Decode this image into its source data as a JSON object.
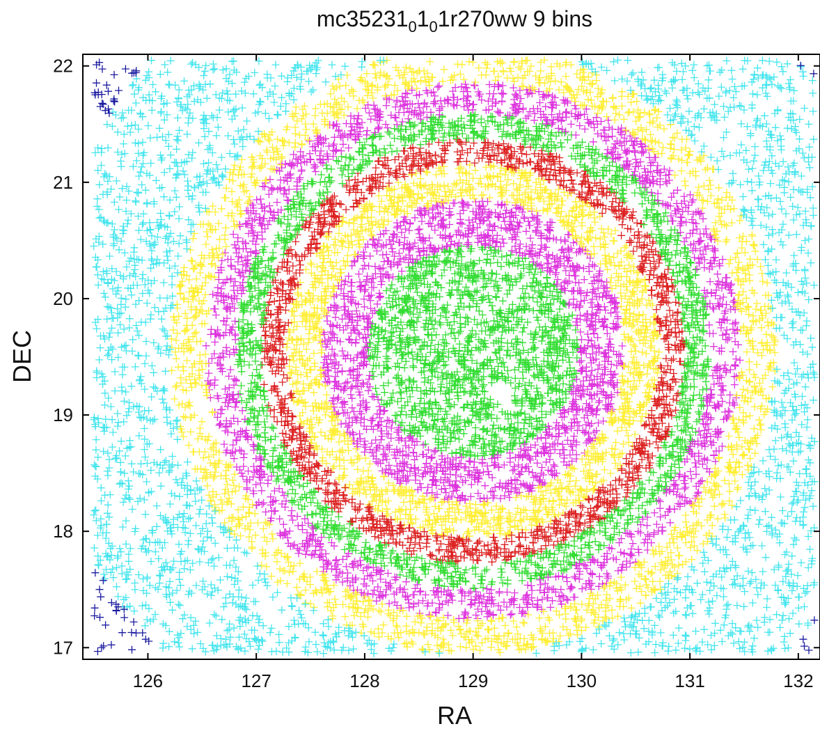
{
  "chart_data": {
    "type": "scatter",
    "title": {
      "prefix": "mc35231",
      "sub1": "0",
      "mid": "1",
      "sub2": "0",
      "suffix": "1r270ww 9 bins"
    },
    "xlabel": "RA",
    "ylabel": "DEC",
    "xlim": [
      125.4,
      132.2
    ],
    "ylim": [
      16.9,
      22.1
    ],
    "xticks": [
      126,
      127,
      128,
      129,
      130,
      131,
      132
    ],
    "yticks": [
      17,
      18,
      19,
      20,
      21,
      22
    ],
    "marker": "+",
    "center": {
      "ra": 129.0,
      "dec": 19.55
    },
    "grid": false,
    "legend": "none",
    "series": [
      {
        "bin": 1,
        "color": "#33dd33",
        "r_inner": 0.0,
        "r_outer": 1.05,
        "count": 1500
      },
      {
        "bin": 2,
        "color": "#dd33dd",
        "r_inner": 1.05,
        "r_outer": 1.5,
        "count": 1500
      },
      {
        "bin": 3,
        "color": "#ffee33",
        "r_inner": 1.5,
        "r_outer": 1.85,
        "count": 1500
      },
      {
        "bin": 4,
        "color": "#dd2222",
        "r_inner": 1.85,
        "r_outer": 2.1,
        "count": 1400
      },
      {
        "bin": 5,
        "color": "#33dd33",
        "r_inner": 2.1,
        "r_outer": 2.35,
        "count": 1500
      },
      {
        "bin": 6,
        "color": "#dd33dd",
        "r_inner": 2.35,
        "r_outer": 2.65,
        "count": 1600
      },
      {
        "bin": 7,
        "color": "#ffee33",
        "r_inner": 2.65,
        "r_outer": 3.0,
        "count": 1600
      },
      {
        "bin": 8,
        "color": "#44e5ee",
        "r_inner": 3.0,
        "r_outer": 4.3,
        "count": 2200
      },
      {
        "bin": 9,
        "color": "#1a1aa0",
        "r_inner": 4.3,
        "r_outer": 6.0,
        "count": 1400
      }
    ]
  }
}
